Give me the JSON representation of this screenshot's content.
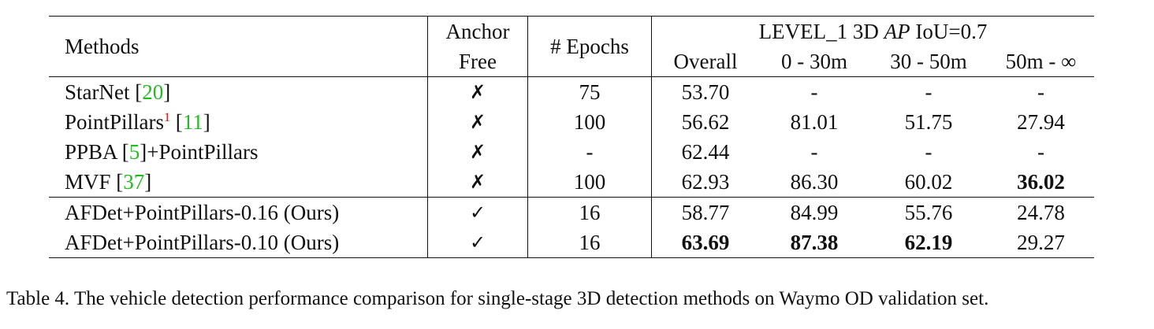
{
  "headers": {
    "methods": "Methods",
    "anchor_free_line1": "Anchor",
    "anchor_free_line2": "Free",
    "epochs": "# Epochs",
    "level_group_pre": "LEVEL_1 3D ",
    "level_group_ap": "AP",
    "level_group_post": " IoU=0.7",
    "overall": "Overall",
    "range1": "0 - 30m",
    "range2": "30 - 50m",
    "range3": "50m - ∞"
  },
  "rows": [
    {
      "method": "StarNet [",
      "cite": "20",
      "method_post": "]",
      "sup": "",
      "anchor_free": "✗",
      "epochs": "75",
      "overall": "53.70",
      "r1": "-",
      "r2": "-",
      "r3": "-"
    },
    {
      "method": "PointPillars",
      "sup": "1",
      "method_mid": " [",
      "cite": "11",
      "method_post": "]",
      "anchor_free": "✗",
      "epochs": "100",
      "overall": "56.62",
      "r1": "81.01",
      "r2": "51.75",
      "r3": "27.94"
    },
    {
      "method": "PPBA [",
      "cite": "5",
      "method_post": "]+PointPillars",
      "sup": "",
      "anchor_free": "✗",
      "epochs": "-",
      "overall": "62.44",
      "r1": "-",
      "r2": "-",
      "r3": "-"
    },
    {
      "method": "MVF [",
      "cite": "37",
      "method_post": "]",
      "sup": "",
      "anchor_free": "✗",
      "epochs": "100",
      "overall": "62.93",
      "r1": "86.30",
      "r2": "60.02",
      "r3": "36.02"
    },
    {
      "method": "AFDet+PointPillars-0.16 (Ours)",
      "anchor_free": "✓",
      "epochs": "16",
      "overall": "58.77",
      "r1": "84.99",
      "r2": "55.76",
      "r3": "24.78"
    },
    {
      "method": "AFDet+PointPillars-0.10 (Ours)",
      "anchor_free": "✓",
      "epochs": "16",
      "overall": "63.69",
      "r1": "87.38",
      "r2": "62.19",
      "r3": "29.27"
    }
  ],
  "caption": "Table 4. The vehicle detection performance comparison for single-stage 3D detection methods on Waymo OD validation set."
}
